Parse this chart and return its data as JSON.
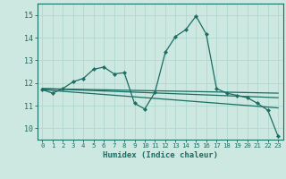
{
  "xlabel": "Humidex (Indice chaleur)",
  "xlim": [
    -0.5,
    23.5
  ],
  "ylim": [
    9.5,
    15.5
  ],
  "yticks": [
    10,
    11,
    12,
    13,
    14,
    15
  ],
  "xticks": [
    0,
    1,
    2,
    3,
    4,
    5,
    6,
    7,
    8,
    9,
    10,
    11,
    12,
    13,
    14,
    15,
    16,
    17,
    18,
    19,
    20,
    21,
    22,
    23
  ],
  "bg_color": "#cce8e0",
  "line_color": "#1a6e64",
  "grid_color": "#b0d8d0",
  "main_x": [
    0,
    1,
    2,
    3,
    4,
    5,
    6,
    7,
    8,
    9,
    10,
    11,
    12,
    13,
    14,
    15,
    16,
    17,
    18,
    19,
    20,
    21,
    22,
    23
  ],
  "main_y": [
    11.7,
    11.55,
    11.75,
    12.05,
    12.2,
    12.6,
    12.7,
    12.4,
    12.45,
    11.1,
    10.85,
    11.6,
    13.35,
    14.05,
    14.35,
    14.95,
    14.15,
    11.75,
    11.55,
    11.45,
    11.35,
    11.1,
    10.8,
    9.65
  ],
  "trend1_x": [
    0,
    23
  ],
  "trend1_y": [
    11.75,
    11.35
  ],
  "trend2_x": [
    0,
    23
  ],
  "trend2_y": [
    11.75,
    11.55
  ],
  "trend3_x": [
    0,
    23
  ],
  "trend3_y": [
    11.7,
    10.9
  ]
}
